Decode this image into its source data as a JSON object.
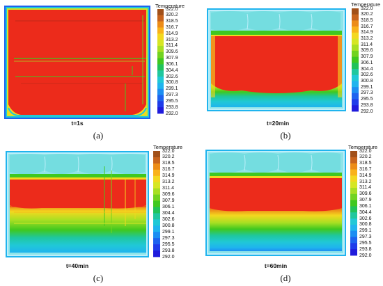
{
  "colorbar": {
    "title": "Temperature",
    "ticks": [
      "322.0",
      "320.2",
      "318.5",
      "316.7",
      "314.9",
      "313.2",
      "311.4",
      "309.6",
      "307.9",
      "306.1",
      "304.4",
      "302.6",
      "300.8",
      "299.1",
      "297.3",
      "295.5",
      "293.8",
      "292.0"
    ],
    "colors": [
      "#a1501a",
      "#c8641e",
      "#ec8c18",
      "#f9b21a",
      "#f3d81f",
      "#d6e624",
      "#a8df23",
      "#72d320",
      "#3fc820",
      "#20c35a",
      "#1fc79e",
      "#20c8d6",
      "#1fb4ee",
      "#1c8ef2",
      "#1d63ef",
      "#1e3cea",
      "#1f1bdc"
    ]
  },
  "panels": [
    {
      "caption": "t=1s",
      "letter": "(a)"
    },
    {
      "caption": "t=20min",
      "letter": "(b)"
    },
    {
      "caption": "t=40min",
      "letter": "(c)"
    },
    {
      "caption": "t=60min",
      "letter": "(d)"
    }
  ]
}
